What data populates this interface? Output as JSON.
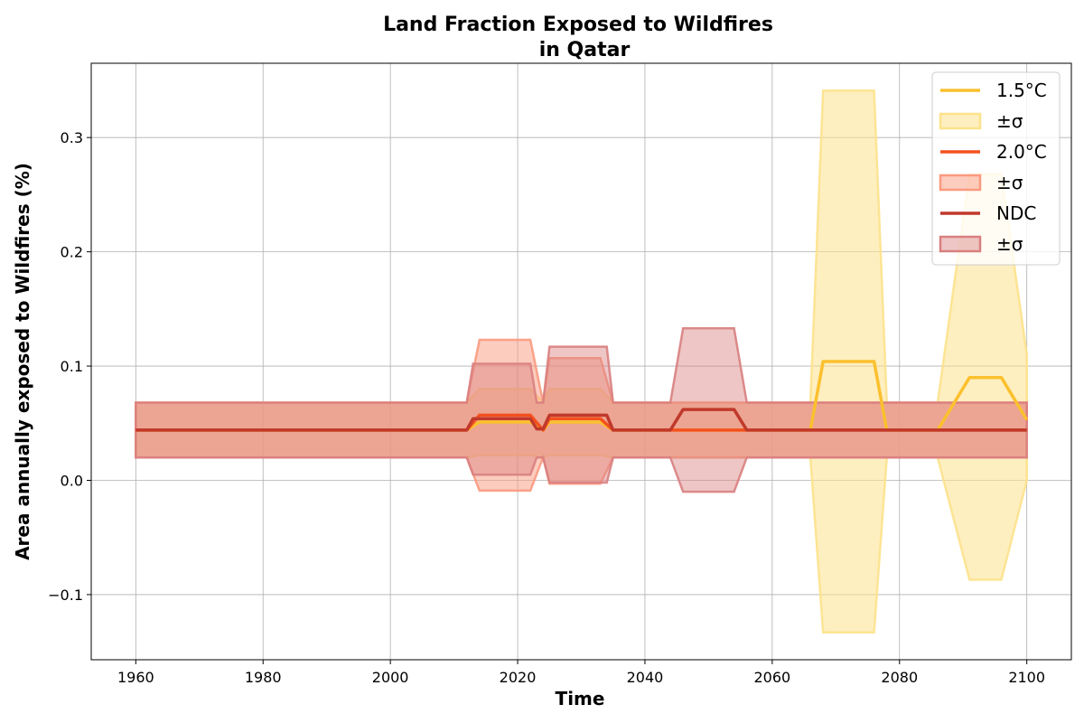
{
  "chart_data": {
    "type": "line",
    "title": "Land Fraction Exposed to Wildfires",
    "subtitle": "in Qatar",
    "xlabel": "Time",
    "ylabel": "Area annually exposed to Wildfires (%)",
    "xlim": [
      1953,
      2107
    ],
    "ylim": [
      -0.157,
      0.365
    ],
    "xticks": [
      1960,
      1980,
      2000,
      2020,
      2040,
      2060,
      2080,
      2100
    ],
    "xtick_labels": [
      "1960",
      "1980",
      "2000",
      "2020",
      "2040",
      "2060",
      "2080",
      "2100"
    ],
    "yticks": [
      -0.1,
      0.0,
      0.1,
      0.2,
      0.3
    ],
    "ytick_labels": [
      "−0.1",
      "0.0",
      "0.1",
      "0.2",
      "0.3"
    ],
    "grid": true,
    "legend_position": "top-right",
    "series": [
      {
        "name": "1.5°C",
        "band_label": "±σ",
        "color": "#fbc02d",
        "fill_color": "#fde28c",
        "fill_opacity": 0.55,
        "x": [
          1960,
          2012,
          2014,
          2022,
          2024,
          2025,
          2033,
          2035,
          2044,
          2046,
          2054,
          2056,
          2066,
          2068,
          2076,
          2078,
          2086,
          2091,
          2096,
          2100
        ],
        "mean": [
          0.044,
          0.044,
          0.051,
          0.051,
          0.044,
          0.051,
          0.051,
          0.044,
          0.044,
          0.044,
          0.044,
          0.044,
          0.044,
          0.104,
          0.104,
          0.044,
          0.044,
          0.09,
          0.09,
          0.053
        ],
        "upper": [
          0.068,
          0.068,
          0.08,
          0.08,
          0.068,
          0.08,
          0.08,
          0.068,
          0.068,
          0.068,
          0.068,
          0.068,
          0.068,
          0.341,
          0.341,
          0.068,
          0.068,
          0.268,
          0.268,
          0.11
        ],
        "lower": [
          0.02,
          0.02,
          0.022,
          0.022,
          0.02,
          0.022,
          0.022,
          0.02,
          0.02,
          0.02,
          0.02,
          0.02,
          0.02,
          -0.133,
          -0.133,
          0.02,
          0.02,
          -0.087,
          -0.087,
          0.0
        ]
      },
      {
        "name": "2.0°C",
        "band_label": "±σ",
        "color": "#f4511e",
        "fill_color": "#fa9a7f",
        "fill_opacity": 0.5,
        "x": [
          1960,
          2012,
          2014,
          2022,
          2024,
          2025,
          2033,
          2035,
          2100
        ],
        "mean": [
          0.044,
          0.044,
          0.057,
          0.057,
          0.044,
          0.054,
          0.054,
          0.044,
          0.044
        ],
        "upper": [
          0.068,
          0.068,
          0.123,
          0.123,
          0.068,
          0.107,
          0.107,
          0.068,
          0.068
        ],
        "lower": [
          0.02,
          0.02,
          -0.009,
          -0.009,
          0.02,
          -0.003,
          -0.003,
          0.02,
          0.02
        ]
      },
      {
        "name": "NDC",
        "band_label": "±σ",
        "color": "#c0392b",
        "fill_color": "#d98080",
        "fill_opacity": 0.45,
        "x": [
          1960,
          2012,
          2013,
          2022,
          2023,
          2024,
          2025,
          2034,
          2035,
          2044,
          2046,
          2054,
          2056,
          2100
        ],
        "mean": [
          0.044,
          0.044,
          0.054,
          0.054,
          0.045,
          0.045,
          0.057,
          0.057,
          0.044,
          0.044,
          0.062,
          0.062,
          0.044,
          0.044
        ],
        "upper": [
          0.068,
          0.068,
          0.102,
          0.102,
          0.068,
          0.068,
          0.117,
          0.117,
          0.068,
          0.068,
          0.133,
          0.133,
          0.068,
          0.068
        ],
        "lower": [
          0.02,
          0.02,
          0.005,
          0.005,
          0.02,
          0.02,
          -0.002,
          -0.002,
          0.02,
          0.02,
          -0.01,
          -0.01,
          0.02,
          0.02
        ]
      }
    ]
  }
}
